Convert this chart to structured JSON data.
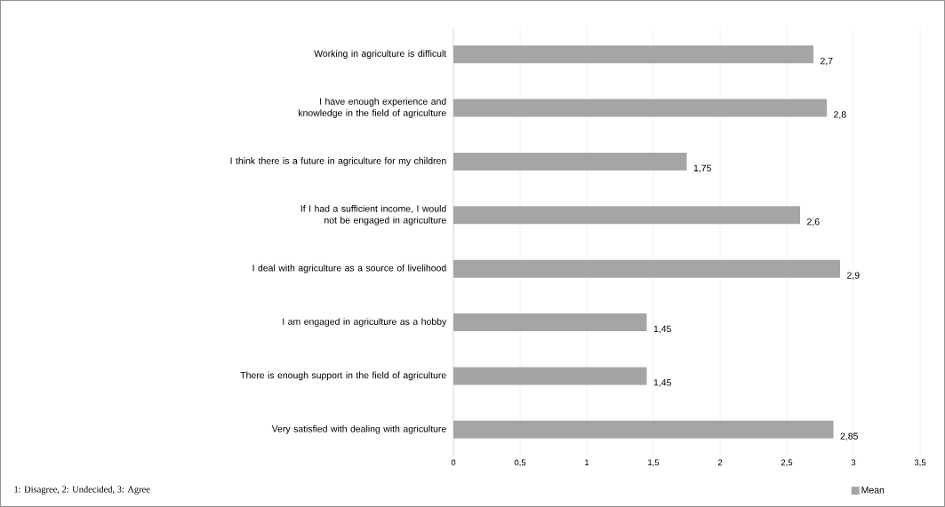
{
  "chart_data": {
    "type": "bar",
    "orientation": "horizontal",
    "categories": [
      "Working in agriculture is difficult",
      "I have enough experience and knowledge in the field of agriculture",
      "I think there is a future in agriculture for my children",
      "If I had a sufficient income, I would not be engaged in agriculture",
      "I deal with agriculture as a source of livelihood",
      "I am engaged in agriculture as a hobby",
      "There is enough support in the field of agriculture",
      "Very satisfied with dealing with agriculture"
    ],
    "series": [
      {
        "name": "Mean",
        "color": "#a5a5a5",
        "values": [
          2.7,
          2.8,
          1.75,
          2.6,
          2.9,
          1.45,
          1.45,
          2.85
        ],
        "value_labels": [
          "2,7",
          "2,8",
          "1,75",
          "2,6",
          "2,9",
          "1,45",
          "1,45",
          "2,85"
        ]
      }
    ],
    "xlim": [
      0,
      3.5
    ],
    "xticks": [
      0,
      {
        "value": 0.5,
        "label": "0,5"
      },
      1,
      {
        "value": 1.5,
        "label": "1,5"
      },
      2,
      {
        "value": 2.5,
        "label": "2,5"
      },
      3,
      {
        "value": 3.5,
        "label": "3,5"
      }
    ],
    "grid": "x",
    "legend": "bottom right",
    "annotations": [
      "1: Disagree, 2: Undecided, 3: Agree"
    ]
  }
}
